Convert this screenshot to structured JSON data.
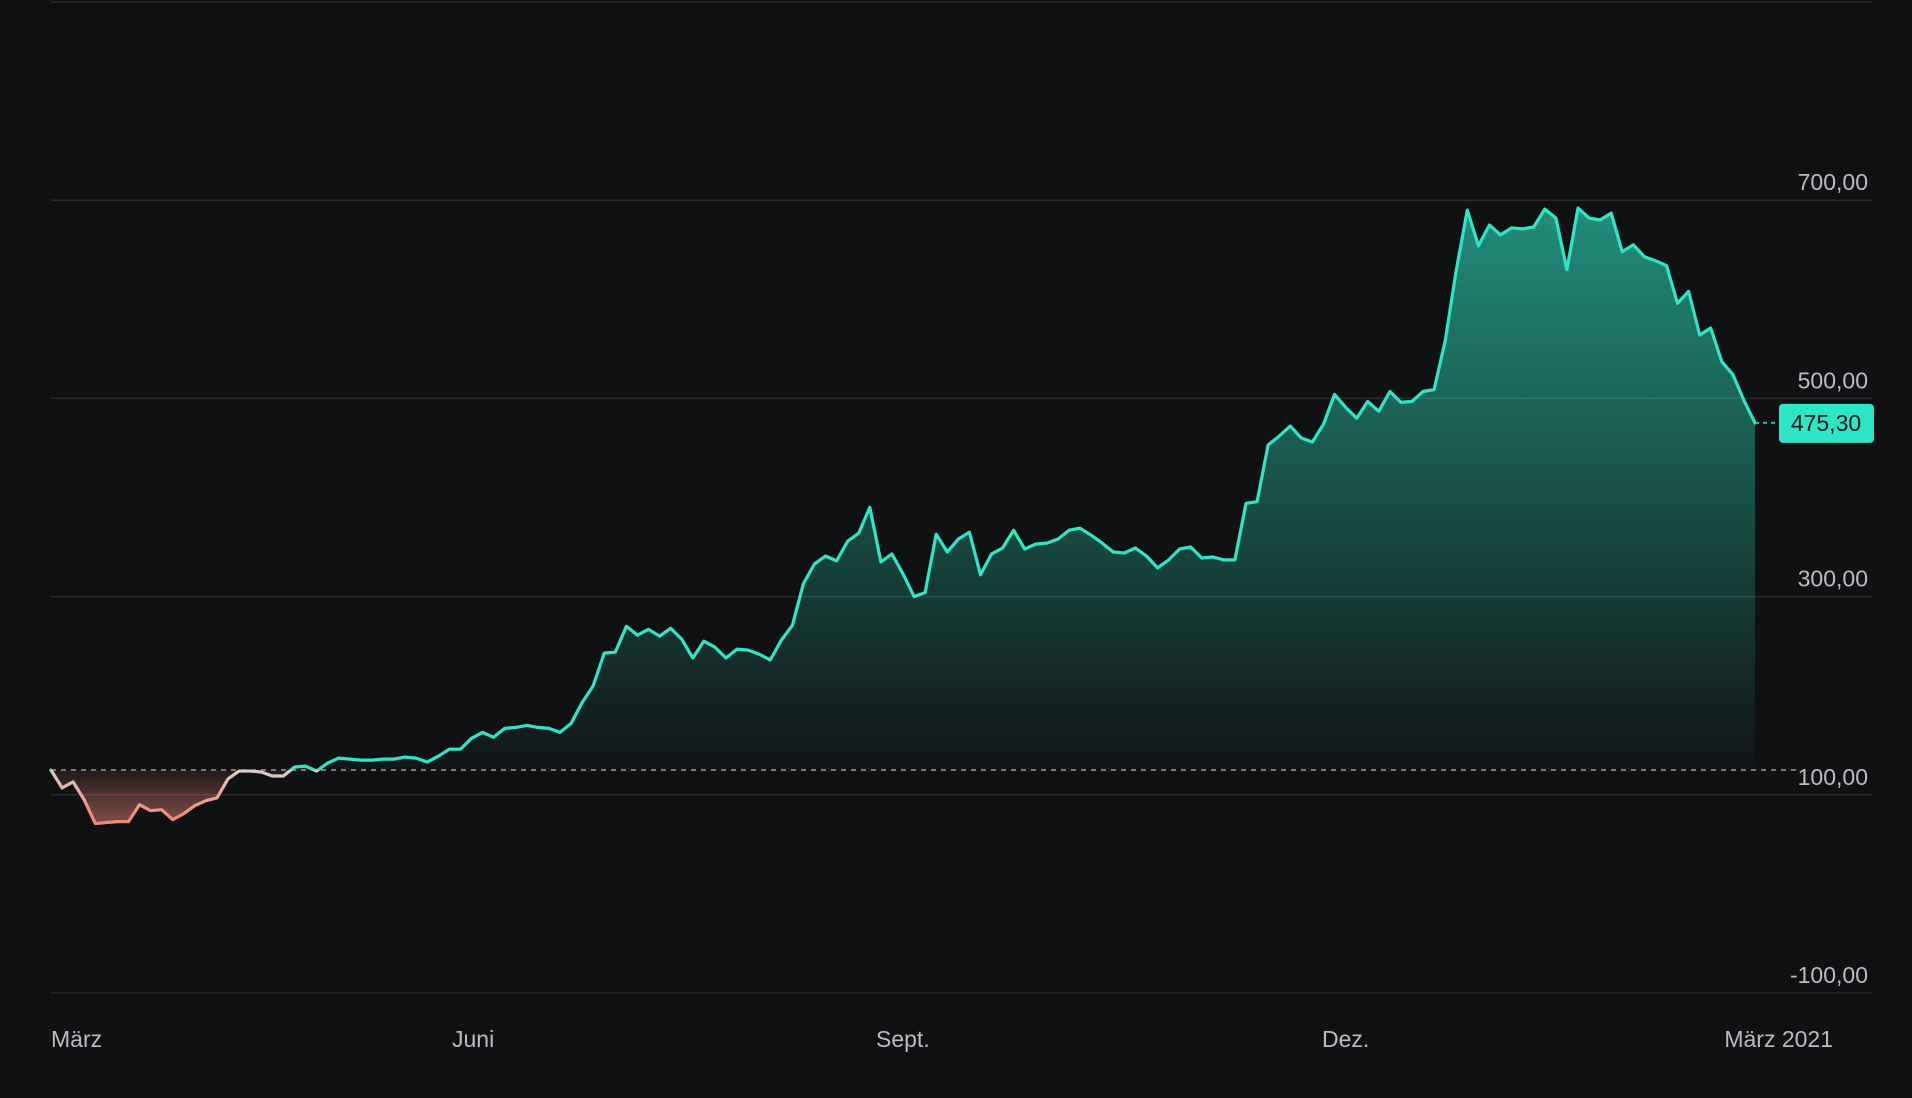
{
  "chart_data": {
    "type": "area",
    "title": "",
    "xlabel": "",
    "ylabel": "",
    "ylim": [
      -100,
      900
    ],
    "y_ticks": [
      -100,
      100,
      300,
      500,
      700
    ],
    "y_tick_labels": [
      "-100,00",
      "100,00",
      "300,00",
      "500,00",
      "700,00"
    ],
    "x_labels": [
      "März",
      "Juni",
      "Sept.",
      "Dez.",
      "März 2021"
    ],
    "grid": true,
    "baseline": 125,
    "current_value": 475.3,
    "current_label": "475,30",
    "colors": {
      "positive": "#2ee6c6",
      "negative": "#f08a78",
      "baseline": "#9a9a9a",
      "price_tag": "#2ee6c6"
    },
    "series": [
      {
        "values": [
          125,
          107,
          113,
          95,
          71,
          72,
          73,
          73,
          90,
          84,
          85,
          75,
          81,
          89,
          94,
          97,
          116,
          124,
          124,
          123,
          119,
          119,
          128,
          129,
          124,
          132,
          137,
          136,
          135,
          135,
          136,
          136,
          138,
          137,
          133,
          139,
          146,
          146,
          157,
          163,
          158,
          167,
          168,
          170,
          168,
          167,
          163,
          172,
          193,
          210,
          243,
          244,
          270,
          261,
          267,
          260,
          268,
          257,
          238,
          255,
          249,
          238,
          247,
          246,
          242,
          236,
          256,
          271,
          313,
          333,
          341,
          336,
          356,
          364,
          390,
          335,
          343,
          323,
          300,
          304,
          363,
          345,
          358,
          365,
          322,
          343,
          349,
          367,
          348,
          353,
          354,
          358,
          367,
          369,
          362,
          354,
          345,
          344,
          349,
          341,
          329,
          337,
          348,
          350,
          339,
          340,
          337,
          337,
          394,
          396,
          453,
          462,
          472,
          460,
          456,
          474,
          504,
          491,
          480,
          497,
          487,
          507,
          496,
          497,
          507,
          509,
          558,
          629,
          690,
          654,
          675,
          665,
          672,
          671,
          673,
          691,
          682,
          630,
          692,
          682,
          680,
          687,
          648,
          655,
          643,
          639,
          634,
          596,
          608,
          564,
          571,
          537,
          524,
          498,
          475.3
        ]
      }
    ]
  }
}
